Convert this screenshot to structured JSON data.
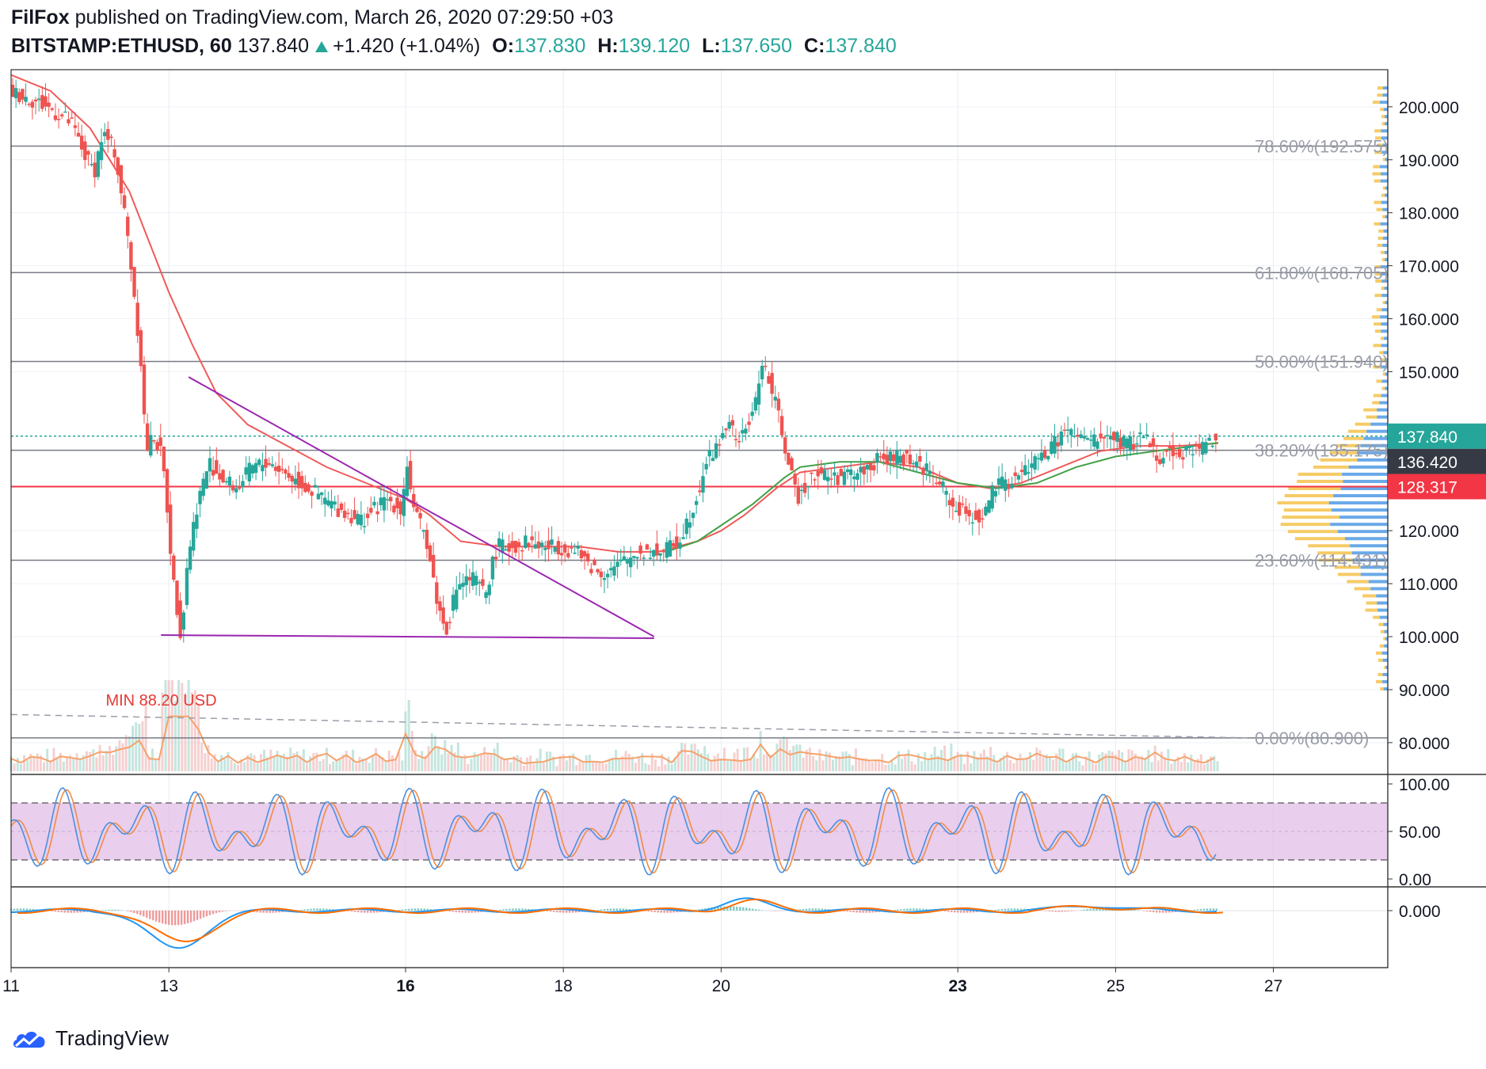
{
  "header": {
    "author": "FilFox",
    "published_text": "published on TradingView.com, March 26, 2020 07:29:50 +03",
    "symbol": "BITSTAMP:ETHUSD, 60",
    "last": "137.840",
    "change": "+1.420 (+1.04%)",
    "o_label": "O:",
    "o": "137.830",
    "h_label": "H:",
    "h": "139.120",
    "l_label": "L:",
    "l": "137.650",
    "c_label": "C:",
    "c": "137.840"
  },
  "brand": {
    "name": "TradingView"
  },
  "colors": {
    "up": "#26a69a",
    "down": "#ef5350",
    "ma_red": "#f05a5a",
    "ma_green": "#43a047",
    "trend": "#9c27b0",
    "fib": "#787b86",
    "rsi_fill": "#e1bee7",
    "stoch_k": "#4a90e2",
    "stoch_d": "#f08c46",
    "macd": "#2196f3",
    "signal": "#ff6d00",
    "vol_ma": "#f6a26b",
    "vp_up": "#5aa0e6",
    "vp_down": "#f5c24a"
  },
  "chart_data": {
    "type": "candlestick",
    "ylim": [
      74,
      207
    ],
    "y_ticks": [
      "200.000",
      "190.000",
      "180.000",
      "170.000",
      "160.000",
      "150.000",
      "120.000",
      "110.000",
      "100.000",
      "90.000",
      "80.000"
    ],
    "x_ticks": [
      {
        "label": "11",
        "day": 11
      },
      {
        "label": "13",
        "day": 13
      },
      {
        "label": "16",
        "day": 16
      },
      {
        "label": "18",
        "day": 18
      },
      {
        "label": "20",
        "day": 20
      },
      {
        "label": "23",
        "day": 23
      },
      {
        "label": "25",
        "day": 25
      },
      {
        "label": "27",
        "day": 27
      }
    ],
    "x_bold_days": [
      16,
      23
    ],
    "xlim_days": [
      11,
      28.45
    ],
    "last_day": 26.3,
    "price_labels": [
      {
        "text": "137.840",
        "value": 137.84,
        "color": "#26a69a"
      },
      {
        "text": "136.420",
        "value": 136.42,
        "color": "#363a45"
      },
      {
        "text": "128.317",
        "value": 128.317,
        "color": "#f23645"
      }
    ],
    "fib_levels": [
      {
        "label": "78.60%(192.575)",
        "value": 192.575
      },
      {
        "label": "61.80%(168.705)",
        "value": 168.705
      },
      {
        "label": "50.00%(151.940)",
        "value": 151.94
      },
      {
        "label": "38.20%(135.175)",
        "value": 135.175
      },
      {
        "label": "23.60%(114.431)",
        "value": 114.431
      },
      {
        "label": "0.00%(80.900)",
        "value": 80.9
      }
    ],
    "horizontal_lines": [
      {
        "value": 128.317,
        "style": "solid",
        "color": "#f23645"
      },
      {
        "value": 137.84,
        "style": "dotted",
        "color": "#26a69a"
      }
    ],
    "annotations": [
      {
        "text": "MIN 88.20 USD",
        "day": 12.3,
        "value": 88.2,
        "color": "#e53935"
      }
    ],
    "trendlines": [
      {
        "from": [
          13.25,
          149.0
        ],
        "to": [
          19.15,
          100.0
        ]
      },
      {
        "from": [
          12.9,
          100.3
        ],
        "to": [
          19.15,
          99.7
        ]
      }
    ],
    "price_path": [
      [
        11.0,
        203
      ],
      [
        11.2,
        202
      ],
      [
        11.5,
        200
      ],
      [
        11.8,
        197
      ],
      [
        12.0,
        190
      ],
      [
        12.1,
        188
      ],
      [
        12.2,
        195
      ],
      [
        12.35,
        192
      ],
      [
        12.5,
        178
      ],
      [
        12.6,
        165
      ],
      [
        12.7,
        150
      ],
      [
        12.75,
        135
      ],
      [
        12.85,
        138
      ],
      [
        12.95,
        134
      ],
      [
        13.0,
        128
      ],
      [
        13.1,
        110
      ],
      [
        13.2,
        100
      ],
      [
        13.28,
        115
      ],
      [
        13.4,
        125
      ],
      [
        13.55,
        133
      ],
      [
        13.7,
        130
      ],
      [
        13.9,
        128
      ],
      [
        14.1,
        132
      ],
      [
        14.3,
        133
      ],
      [
        14.6,
        130
      ],
      [
        14.9,
        127
      ],
      [
        15.2,
        124
      ],
      [
        15.5,
        122
      ],
      [
        15.8,
        126
      ],
      [
        16.0,
        124
      ],
      [
        16.05,
        134
      ],
      [
        16.15,
        123
      ],
      [
        16.3,
        119
      ],
      [
        16.45,
        106
      ],
      [
        16.55,
        101
      ],
      [
        16.7,
        110
      ],
      [
        16.9,
        111
      ],
      [
        17.05,
        108
      ],
      [
        17.2,
        117
      ],
      [
        17.4,
        117
      ],
      [
        17.6,
        118
      ],
      [
        17.8,
        117
      ],
      [
        18.0,
        117
      ],
      [
        18.2,
        116
      ],
      [
        18.5,
        112
      ],
      [
        18.7,
        113
      ],
      [
        19.0,
        116
      ],
      [
        19.3,
        116
      ],
      [
        19.5,
        118
      ],
      [
        19.7,
        125
      ],
      [
        19.85,
        133
      ],
      [
        20.0,
        136
      ],
      [
        20.1,
        140
      ],
      [
        20.3,
        137
      ],
      [
        20.5,
        145
      ],
      [
        20.55,
        153
      ],
      [
        20.65,
        148
      ],
      [
        20.8,
        140
      ],
      [
        20.9,
        132
      ],
      [
        21.0,
        126
      ],
      [
        21.2,
        131
      ],
      [
        21.5,
        130
      ],
      [
        21.8,
        131
      ],
      [
        22.0,
        133
      ],
      [
        22.3,
        134
      ],
      [
        22.5,
        133
      ],
      [
        22.7,
        131
      ],
      [
        22.9,
        127
      ],
      [
        23.0,
        124
      ],
      [
        23.2,
        123
      ],
      [
        23.35,
        122
      ],
      [
        23.5,
        128
      ],
      [
        23.8,
        130
      ],
      [
        24.0,
        133
      ],
      [
        24.2,
        135
      ],
      [
        24.4,
        139
      ],
      [
        24.6,
        137
      ],
      [
        24.8,
        137
      ],
      [
        25.0,
        138
      ],
      [
        25.2,
        136
      ],
      [
        25.4,
        138
      ],
      [
        25.6,
        134
      ],
      [
        25.8,
        135
      ],
      [
        26.0,
        135
      ],
      [
        26.15,
        136
      ],
      [
        26.3,
        137.84
      ]
    ],
    "ma_red": [
      [
        11.0,
        206
      ],
      [
        11.5,
        203
      ],
      [
        12.0,
        196
      ],
      [
        12.5,
        184
      ],
      [
        13.0,
        165
      ],
      [
        13.3,
        155
      ],
      [
        13.6,
        146
      ],
      [
        14.0,
        140
      ],
      [
        14.5,
        136
      ],
      [
        15.0,
        132
      ],
      [
        15.5,
        129
      ],
      [
        16.0,
        126
      ],
      [
        16.3,
        123
      ],
      [
        16.7,
        118
      ],
      [
        17.2,
        117
      ],
      [
        17.7,
        117
      ],
      [
        18.2,
        117
      ],
      [
        18.7,
        116
      ],
      [
        19.2,
        116
      ],
      [
        19.7,
        118
      ],
      [
        20.0,
        120
      ],
      [
        20.3,
        123
      ],
      [
        20.7,
        128
      ],
      [
        21.0,
        131
      ],
      [
        21.5,
        132
      ],
      [
        22.0,
        133
      ],
      [
        22.5,
        132
      ],
      [
        23.0,
        129
      ],
      [
        23.4,
        128
      ],
      [
        23.8,
        129
      ],
      [
        24.3,
        132
      ],
      [
        24.8,
        135
      ],
      [
        25.3,
        136
      ],
      [
        25.8,
        136
      ],
      [
        26.3,
        136.5
      ]
    ],
    "ma_green": [
      [
        19.3,
        116
      ],
      [
        19.7,
        118
      ],
      [
        20.0,
        121
      ],
      [
        20.4,
        125
      ],
      [
        20.8,
        130
      ],
      [
        21.0,
        132
      ],
      [
        21.5,
        133
      ],
      [
        22.0,
        133
      ],
      [
        22.5,
        131
      ],
      [
        23.0,
        129
      ],
      [
        23.5,
        128
      ],
      [
        24.0,
        129
      ],
      [
        24.5,
        132
      ],
      [
        25.0,
        134
      ],
      [
        25.5,
        135
      ],
      [
        26.0,
        136
      ],
      [
        26.3,
        136.6
      ]
    ],
    "rsi_panel": {
      "ticks": [
        "100.00",
        "50.00",
        "0.00"
      ],
      "band": [
        20,
        80
      ]
    },
    "macd_panel": {
      "ticks": [
        "0.000"
      ]
    }
  }
}
